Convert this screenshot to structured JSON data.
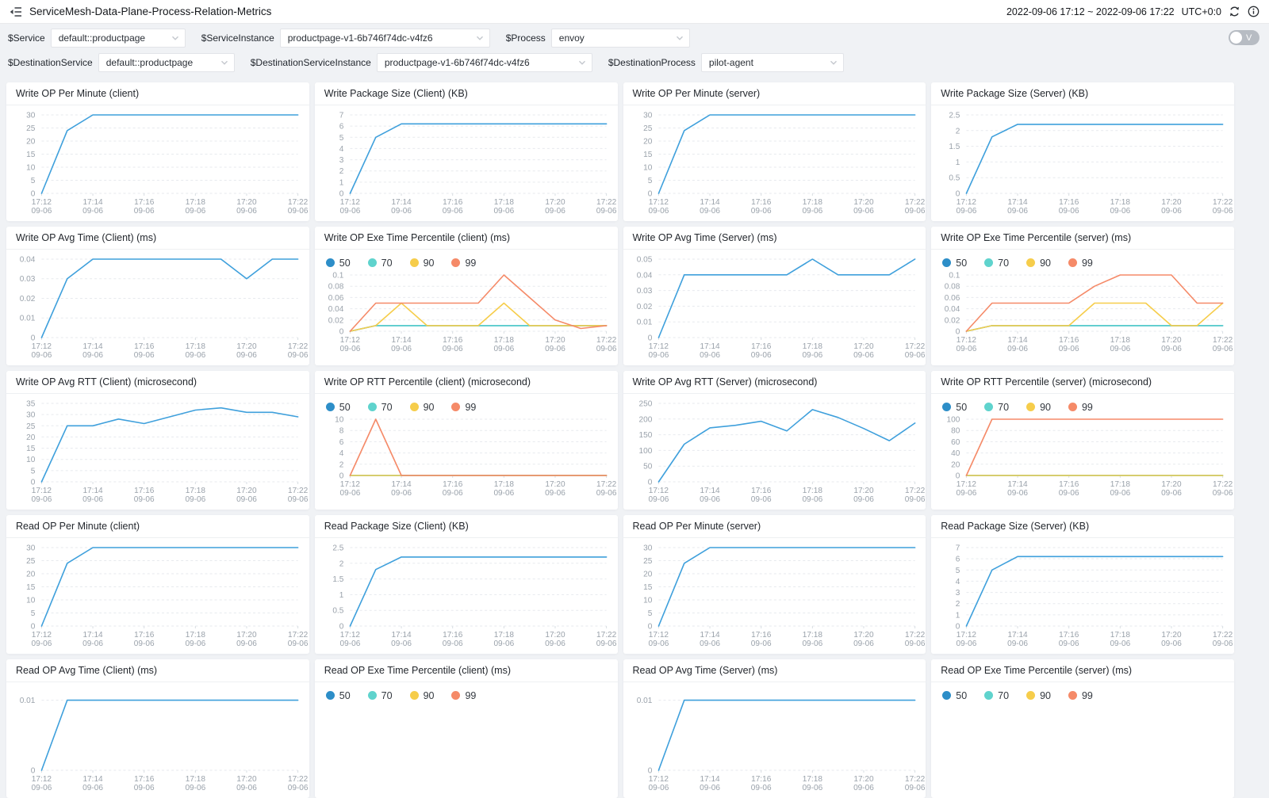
{
  "header": {
    "title": "ServiceMesh-Data-Plane-Process-Relation-Metrics",
    "time_range": "2022-09-06 17:12 ~ 2022-09-06 17:22",
    "timezone": "UTC+0:0"
  },
  "filters": {
    "row1": [
      {
        "label": "$Service",
        "value": "default::productpage"
      },
      {
        "label": "$ServiceInstance",
        "value": "productpage-v1-6b746f74dc-v4fz6"
      },
      {
        "label": "$Process",
        "value": "envoy"
      }
    ],
    "row2": [
      {
        "label": "$DestinationService",
        "value": "default::productpage"
      },
      {
        "label": "$DestinationServiceInstance",
        "value": "productpage-v1-6b746f74dc-v4fz6"
      },
      {
        "label": "$DestinationProcess",
        "value": "pilot-agent"
      }
    ],
    "toggle_label": "V"
  },
  "colors": {
    "line_blue": "#3fa0dc",
    "p50": "#2d8ec8",
    "p70": "#5fd3cd",
    "p90": "#f6cd4b",
    "p99": "#f58a68",
    "grid": "#e7eaee",
    "axis_text": "#9aa2ab"
  },
  "chart_data": [
    {
      "type": "line",
      "title": "Write OP Per Minute (client)",
      "x_ticks": [
        "17:12",
        "17:14",
        "17:16",
        "17:18",
        "17:20",
        "17:22"
      ],
      "x_date": "09-06",
      "y_ticks": [
        0,
        5,
        10,
        15,
        20,
        25,
        30
      ],
      "series": [
        {
          "name": "value",
          "color": "#3fa0dc",
          "values": [
            0,
            24,
            30,
            30,
            30,
            30,
            30,
            30,
            30,
            30,
            30
          ]
        }
      ]
    },
    {
      "type": "line",
      "title": "Write Package Size (Client) (KB)",
      "x_ticks": [
        "17:12",
        "17:14",
        "17:16",
        "17:18",
        "17:20",
        "17:22"
      ],
      "x_date": "09-06",
      "y_ticks": [
        0,
        1,
        2,
        3,
        4,
        5,
        6,
        7
      ],
      "series": [
        {
          "name": "value",
          "color": "#3fa0dc",
          "values": [
            0,
            5,
            6.2,
            6.2,
            6.2,
            6.2,
            6.2,
            6.2,
            6.2,
            6.2,
            6.2
          ]
        }
      ]
    },
    {
      "type": "line",
      "title": "Write OP Per Minute (server)",
      "x_ticks": [
        "17:12",
        "17:14",
        "17:16",
        "17:18",
        "17:20",
        "17:22"
      ],
      "x_date": "09-06",
      "y_ticks": [
        0,
        5,
        10,
        15,
        20,
        25,
        30
      ],
      "series": [
        {
          "name": "value",
          "color": "#3fa0dc",
          "values": [
            0,
            24,
            30,
            30,
            30,
            30,
            30,
            30,
            30,
            30,
            30
          ]
        }
      ]
    },
    {
      "type": "line",
      "title": "Write Package Size (Server) (KB)",
      "x_ticks": [
        "17:12",
        "17:14",
        "17:16",
        "17:18",
        "17:20",
        "17:22"
      ],
      "x_date": "09-06",
      "y_ticks": [
        0,
        0.5,
        1,
        1.5,
        2,
        2.5
      ],
      "series": [
        {
          "name": "value",
          "color": "#3fa0dc",
          "values": [
            0,
            1.8,
            2.2,
            2.2,
            2.2,
            2.2,
            2.2,
            2.2,
            2.2,
            2.2,
            2.2
          ]
        }
      ]
    },
    {
      "type": "line",
      "title": "Write OP Avg Time (Client) (ms)",
      "x_ticks": [
        "17:12",
        "17:14",
        "17:16",
        "17:18",
        "17:20",
        "17:22"
      ],
      "x_date": "09-06",
      "y_ticks": [
        0,
        0.01,
        0.02,
        0.03,
        0.04
      ],
      "series": [
        {
          "name": "value",
          "color": "#3fa0dc",
          "values": [
            0,
            0.03,
            0.04,
            0.04,
            0.04,
            0.04,
            0.04,
            0.04,
            0.03,
            0.04,
            0.04
          ]
        }
      ]
    },
    {
      "type": "line",
      "title": "Write OP Exe Time Percentile (client) (ms)",
      "legend": true,
      "x_ticks": [
        "17:12",
        "17:14",
        "17:16",
        "17:18",
        "17:20",
        "17:22"
      ],
      "x_date": "09-06",
      "y_ticks": [
        0,
        0.02,
        0.04,
        0.06,
        0.08,
        0.1
      ],
      "series": [
        {
          "name": "50",
          "color": "#2d8ec8",
          "values": [
            0,
            0.01,
            0.01,
            0.01,
            0.01,
            0.01,
            0.01,
            0.01,
            0.01,
            0.01,
            0.01
          ]
        },
        {
          "name": "70",
          "color": "#5fd3cd",
          "values": [
            0,
            0.01,
            0.01,
            0.01,
            0.01,
            0.01,
            0.01,
            0.01,
            0.01,
            0.01,
            0.01
          ]
        },
        {
          "name": "90",
          "color": "#f6cd4b",
          "values": [
            0,
            0.01,
            0.05,
            0.01,
            0.01,
            0.01,
            0.05,
            0.01,
            0.01,
            0.01,
            0.01
          ]
        },
        {
          "name": "99",
          "color": "#f58a68",
          "values": [
            0,
            0.05,
            0.05,
            0.05,
            0.05,
            0.05,
            0.1,
            0.06,
            0.02,
            0.005,
            0.01
          ]
        }
      ]
    },
    {
      "type": "line",
      "title": "Write OP Avg Time (Server) (ms)",
      "x_ticks": [
        "17:12",
        "17:14",
        "17:16",
        "17:18",
        "17:20",
        "17:22"
      ],
      "x_date": "09-06",
      "y_ticks": [
        0,
        0.01,
        0.02,
        0.03,
        0.04,
        0.05
      ],
      "series": [
        {
          "name": "value",
          "color": "#3fa0dc",
          "values": [
            0,
            0.04,
            0.04,
            0.04,
            0.04,
            0.04,
            0.05,
            0.04,
            0.04,
            0.04,
            0.05
          ]
        }
      ]
    },
    {
      "type": "line",
      "title": "Write OP Exe Time Percentile (server) (ms)",
      "legend": true,
      "x_ticks": [
        "17:12",
        "17:14",
        "17:16",
        "17:18",
        "17:20",
        "17:22"
      ],
      "x_date": "09-06",
      "y_ticks": [
        0,
        0.02,
        0.04,
        0.06,
        0.08,
        0.1
      ],
      "series": [
        {
          "name": "50",
          "color": "#2d8ec8",
          "values": [
            0,
            0.01,
            0.01,
            0.01,
            0.01,
            0.01,
            0.01,
            0.01,
            0.01,
            0.01,
            0.01
          ]
        },
        {
          "name": "70",
          "color": "#5fd3cd",
          "values": [
            0,
            0.01,
            0.01,
            0.01,
            0.01,
            0.01,
            0.01,
            0.01,
            0.01,
            0.01,
            0.01
          ]
        },
        {
          "name": "90",
          "color": "#f6cd4b",
          "values": [
            0,
            0.01,
            0.01,
            0.01,
            0.01,
            0.05,
            0.05,
            0.05,
            0.01,
            0.01,
            0.05
          ]
        },
        {
          "name": "99",
          "color": "#f58a68",
          "values": [
            0,
            0.05,
            0.05,
            0.05,
            0.05,
            0.08,
            0.1,
            0.1,
            0.1,
            0.05,
            0.05
          ]
        }
      ]
    },
    {
      "type": "line",
      "title": "Write OP Avg RTT (Client) (microsecond)",
      "x_ticks": [
        "17:12",
        "17:14",
        "17:16",
        "17:18",
        "17:20",
        "17:22"
      ],
      "x_date": "09-06",
      "y_ticks": [
        0,
        5,
        10,
        15,
        20,
        25,
        30,
        35
      ],
      "series": [
        {
          "name": "value",
          "color": "#3fa0dc",
          "values": [
            0,
            25,
            25,
            28,
            26,
            29,
            32,
            33,
            31,
            31,
            29
          ]
        }
      ]
    },
    {
      "type": "line",
      "title": "Write OP RTT Percentile (client) (microsecond)",
      "legend": true,
      "x_ticks": [
        "17:12",
        "17:14",
        "17:16",
        "17:18",
        "17:20",
        "17:22"
      ],
      "x_date": "09-06",
      "y_ticks": [
        0,
        2,
        4,
        6,
        8,
        10
      ],
      "series": [
        {
          "name": "50",
          "color": "#2d8ec8",
          "values": [
            0,
            0,
            0,
            0,
            0,
            0,
            0,
            0,
            0,
            0,
            0
          ]
        },
        {
          "name": "70",
          "color": "#5fd3cd",
          "values": [
            0,
            0,
            0,
            0,
            0,
            0,
            0,
            0,
            0,
            0,
            0
          ]
        },
        {
          "name": "90",
          "color": "#f6cd4b",
          "values": [
            0,
            0,
            0,
            0,
            0,
            0,
            0,
            0,
            0,
            0,
            0
          ]
        },
        {
          "name": "99",
          "color": "#f58a68",
          "values": [
            0,
            10,
            0,
            0,
            0,
            0,
            0,
            0,
            0,
            0,
            0
          ]
        }
      ]
    },
    {
      "type": "line",
      "title": "Write OP Avg RTT (Server) (microsecond)",
      "x_ticks": [
        "17:12",
        "17:14",
        "17:16",
        "17:18",
        "17:20",
        "17:22"
      ],
      "x_date": "09-06",
      "y_ticks": [
        0,
        50,
        100,
        150,
        200,
        250
      ],
      "series": [
        {
          "name": "value",
          "color": "#3fa0dc",
          "values": [
            0,
            120,
            172,
            180,
            193,
            162,
            230,
            205,
            170,
            131,
            187
          ]
        }
      ]
    },
    {
      "type": "line",
      "title": "Write OP RTT Percentile (server) (microsecond)",
      "legend": true,
      "x_ticks": [
        "17:12",
        "17:14",
        "17:16",
        "17:18",
        "17:20",
        "17:22"
      ],
      "x_date": "09-06",
      "y_ticks": [
        0,
        20,
        40,
        60,
        80,
        100
      ],
      "series": [
        {
          "name": "50",
          "color": "#2d8ec8",
          "values": [
            0,
            0,
            0,
            0,
            0,
            0,
            0,
            0,
            0,
            0,
            0
          ]
        },
        {
          "name": "70",
          "color": "#5fd3cd",
          "values": [
            0,
            0,
            0,
            0,
            0,
            0,
            0,
            0,
            0,
            0,
            0
          ]
        },
        {
          "name": "90",
          "color": "#f6cd4b",
          "values": [
            0,
            0,
            0,
            0,
            0,
            0,
            0,
            0,
            0,
            0,
            0
          ]
        },
        {
          "name": "99",
          "color": "#f58a68",
          "values": [
            0,
            100,
            100,
            100,
            100,
            100,
            100,
            100,
            100,
            100,
            100
          ]
        }
      ]
    },
    {
      "type": "line",
      "title": "Read OP Per Minute (client)",
      "x_ticks": [
        "17:12",
        "17:14",
        "17:16",
        "17:18",
        "17:20",
        "17:22"
      ],
      "x_date": "09-06",
      "y_ticks": [
        0,
        5,
        10,
        15,
        20,
        25,
        30
      ],
      "series": [
        {
          "name": "value",
          "color": "#3fa0dc",
          "values": [
            0,
            24,
            30,
            30,
            30,
            30,
            30,
            30,
            30,
            30,
            30
          ]
        }
      ]
    },
    {
      "type": "line",
      "title": "Read Package Size (Client) (KB)",
      "x_ticks": [
        "17:12",
        "17:14",
        "17:16",
        "17:18",
        "17:20",
        "17:22"
      ],
      "x_date": "09-06",
      "y_ticks": [
        0,
        0.5,
        1,
        1.5,
        2,
        2.5
      ],
      "series": [
        {
          "name": "value",
          "color": "#3fa0dc",
          "values": [
            0,
            1.8,
            2.2,
            2.2,
            2.2,
            2.2,
            2.2,
            2.2,
            2.2,
            2.2,
            2.2
          ]
        }
      ]
    },
    {
      "type": "line",
      "title": "Read OP Per Minute (server)",
      "x_ticks": [
        "17:12",
        "17:14",
        "17:16",
        "17:18",
        "17:20",
        "17:22"
      ],
      "x_date": "09-06",
      "y_ticks": [
        0,
        5,
        10,
        15,
        20,
        25,
        30
      ],
      "series": [
        {
          "name": "value",
          "color": "#3fa0dc",
          "values": [
            0,
            24,
            30,
            30,
            30,
            30,
            30,
            30,
            30,
            30,
            30
          ]
        }
      ]
    },
    {
      "type": "line",
      "title": "Read Package Size (Server) (KB)",
      "x_ticks": [
        "17:12",
        "17:14",
        "17:16",
        "17:18",
        "17:20",
        "17:22"
      ],
      "x_date": "09-06",
      "y_ticks": [
        0,
        1,
        2,
        3,
        4,
        5,
        6,
        7
      ],
      "series": [
        {
          "name": "value",
          "color": "#3fa0dc",
          "values": [
            0,
            5,
            6.2,
            6.2,
            6.2,
            6.2,
            6.2,
            6.2,
            6.2,
            6.2,
            6.2
          ]
        }
      ]
    },
    {
      "type": "line",
      "title": "Read OP Avg Time (Client) (ms)",
      "x_ticks": [
        "17:12",
        "17:14",
        "17:16",
        "17:18",
        "17:20",
        "17:22"
      ],
      "x_date": "09-06",
      "y_ticks": [
        0,
        0.01
      ],
      "ymax": 0.0112,
      "series": [
        {
          "name": "value",
          "color": "#3fa0dc",
          "values": [
            0,
            0.01,
            0.01,
            0.01,
            0.01,
            0.01,
            0.01,
            0.01,
            0.01,
            0.01,
            0.01
          ]
        }
      ]
    },
    {
      "type": "line",
      "title": "Read OP Exe Time Percentile (client) (ms)",
      "legend": true,
      "x_ticks": [
        "17:12",
        "17:14",
        "17:16",
        "17:18",
        "17:20",
        "17:22"
      ],
      "x_date": "09-06",
      "y_ticks": [],
      "series": [
        {
          "name": "50",
          "color": "#2d8ec8",
          "values": []
        },
        {
          "name": "70",
          "color": "#5fd3cd",
          "values": []
        },
        {
          "name": "90",
          "color": "#f6cd4b",
          "values": []
        },
        {
          "name": "99",
          "color": "#f58a68",
          "values": []
        }
      ]
    },
    {
      "type": "line",
      "title": "Read OP Avg Time (Server) (ms)",
      "x_ticks": [
        "17:12",
        "17:14",
        "17:16",
        "17:18",
        "17:20",
        "17:22"
      ],
      "x_date": "09-06",
      "y_ticks": [
        0,
        0.01
      ],
      "ymax": 0.0112,
      "series": [
        {
          "name": "value",
          "color": "#3fa0dc",
          "values": [
            0,
            0.01,
            0.01,
            0.01,
            0.01,
            0.01,
            0.01,
            0.01,
            0.01,
            0.01,
            0.01
          ]
        }
      ]
    },
    {
      "type": "line",
      "title": "Read OP Exe Time Percentile (server) (ms)",
      "legend": true,
      "x_ticks": [
        "17:12",
        "17:14",
        "17:16",
        "17:18",
        "17:20",
        "17:22"
      ],
      "x_date": "09-06",
      "y_ticks": [],
      "series": [
        {
          "name": "50",
          "color": "#2d8ec8",
          "values": []
        },
        {
          "name": "70",
          "color": "#5fd3cd",
          "values": []
        },
        {
          "name": "90",
          "color": "#f6cd4b",
          "values": []
        },
        {
          "name": "99",
          "color": "#f58a68",
          "values": []
        }
      ]
    }
  ]
}
